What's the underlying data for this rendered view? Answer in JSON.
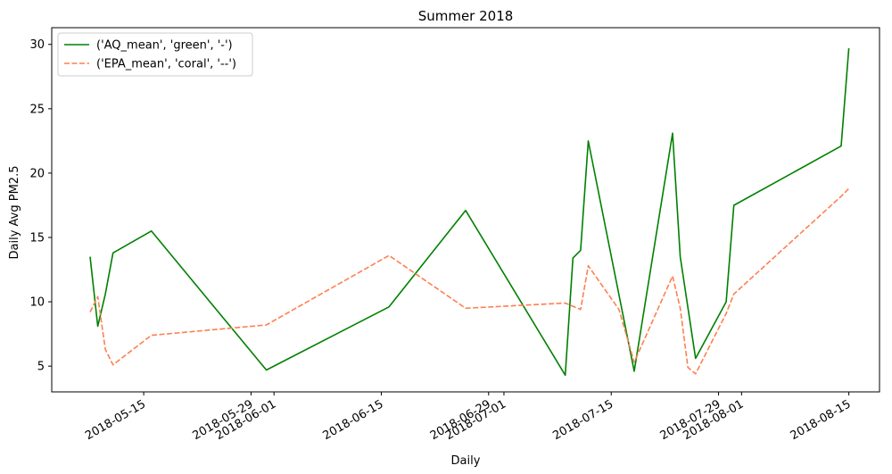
{
  "chart_data": {
    "type": "line",
    "title": "Summer 2018",
    "xlabel": "Daily",
    "ylabel": "Daily Avg PM2.5",
    "x_ticks": [
      "2018-05-15",
      "2018-05-29",
      "2018-06-01",
      "2018-06-15",
      "2018-06-29",
      "2018-07-01",
      "2018-07-15",
      "2018-07-29",
      "2018-08-01",
      "2018-08-15"
    ],
    "y_ticks": [
      5,
      10,
      15,
      20,
      25,
      30
    ],
    "xlim": [
      "2018-05-03",
      "2018-08-19"
    ],
    "ylim": [
      3.0,
      31.3
    ],
    "grid": false,
    "legend_position": "top-left",
    "series": [
      {
        "name": "('AQ_mean', 'green', '-')",
        "color": "#008000",
        "dash": "solid",
        "points": [
          {
            "x": "2018-05-08",
            "y": 13.5
          },
          {
            "x": "2018-05-09",
            "y": 8.1
          },
          {
            "x": "2018-05-10",
            "y": 10.6
          },
          {
            "x": "2018-05-11",
            "y": 13.8
          },
          {
            "x": "2018-05-16",
            "y": 15.5
          },
          {
            "x": "2018-05-31",
            "y": 4.7
          },
          {
            "x": "2018-06-16",
            "y": 9.6
          },
          {
            "x": "2018-06-26",
            "y": 17.1
          },
          {
            "x": "2018-07-09",
            "y": 4.3
          },
          {
            "x": "2018-07-10",
            "y": 13.4
          },
          {
            "x": "2018-07-11",
            "y": 14.0
          },
          {
            "x": "2018-07-12",
            "y": 22.5
          },
          {
            "x": "2018-07-18",
            "y": 4.6
          },
          {
            "x": "2018-07-23",
            "y": 23.1
          },
          {
            "x": "2018-07-24",
            "y": 13.5
          },
          {
            "x": "2018-07-26",
            "y": 5.6
          },
          {
            "x": "2018-07-30",
            "y": 10.0
          },
          {
            "x": "2018-07-31",
            "y": 17.5
          },
          {
            "x": "2018-08-14",
            "y": 22.1
          },
          {
            "x": "2018-08-15",
            "y": 29.7
          }
        ]
      },
      {
        "name": "('EPA_mean', 'coral', '--')",
        "color": "#ff7f50",
        "dash": "dashed",
        "points": [
          {
            "x": "2018-05-08",
            "y": 9.2
          },
          {
            "x": "2018-05-09",
            "y": 10.4
          },
          {
            "x": "2018-05-10",
            "y": 6.3
          },
          {
            "x": "2018-05-11",
            "y": 5.1
          },
          {
            "x": "2018-05-16",
            "y": 7.4
          },
          {
            "x": "2018-05-31",
            "y": 8.2
          },
          {
            "x": "2018-06-16",
            "y": 13.6
          },
          {
            "x": "2018-06-26",
            "y": 9.5
          },
          {
            "x": "2018-07-09",
            "y": 9.9
          },
          {
            "x": "2018-07-11",
            "y": 9.4
          },
          {
            "x": "2018-07-12",
            "y": 12.8
          },
          {
            "x": "2018-07-16",
            "y": 9.4
          },
          {
            "x": "2018-07-18",
            "y": 5.3
          },
          {
            "x": "2018-07-23",
            "y": 12.0
          },
          {
            "x": "2018-07-24",
            "y": 9.5
          },
          {
            "x": "2018-07-25",
            "y": 4.9
          },
          {
            "x": "2018-07-26",
            "y": 4.4
          },
          {
            "x": "2018-07-30",
            "y": 9.1
          },
          {
            "x": "2018-07-31",
            "y": 10.6
          },
          {
            "x": "2018-08-14",
            "y": 18.2
          },
          {
            "x": "2018-08-15",
            "y": 18.8
          }
        ]
      }
    ]
  }
}
